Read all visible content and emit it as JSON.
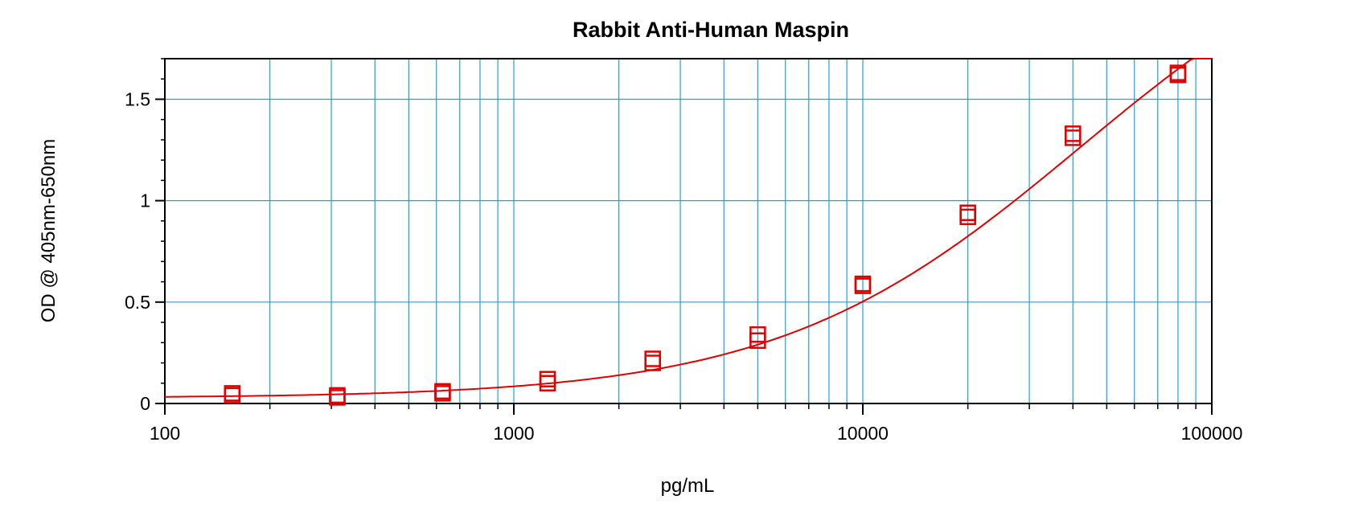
{
  "chart_data": {
    "type": "scatter",
    "title": "Rabbit Anti-Human Maspin",
    "xlabel": "pg/mL",
    "ylabel": "OD @ 405nm-650nm",
    "x_scale": "log",
    "xlim": [
      100,
      100000
    ],
    "ylim": [
      0,
      1.7
    ],
    "x_ticks": [
      "100",
      "1000",
      "10000",
      "100000"
    ],
    "y_ticks": [
      "0",
      "0.5",
      "1",
      "1.5"
    ],
    "grid": true,
    "legend": "none",
    "series": [
      {
        "marker": "square",
        "color": "#e00000",
        "points": [
          {
            "x": 156,
            "y": 0.05
          },
          {
            "x": 156,
            "y": 0.04
          },
          {
            "x": 312,
            "y": 0.03
          },
          {
            "x": 312,
            "y": 0.04
          },
          {
            "x": 625,
            "y": 0.05
          },
          {
            "x": 625,
            "y": 0.06
          },
          {
            "x": 1250,
            "y": 0.1
          },
          {
            "x": 1250,
            "y": 0.12
          },
          {
            "x": 2500,
            "y": 0.2
          },
          {
            "x": 2500,
            "y": 0.22
          },
          {
            "x": 5000,
            "y": 0.31
          },
          {
            "x": 5000,
            "y": 0.34
          },
          {
            "x": 10000,
            "y": 0.59
          },
          {
            "x": 10000,
            "y": 0.58
          },
          {
            "x": 20000,
            "y": 0.92
          },
          {
            "x": 20000,
            "y": 0.94
          },
          {
            "x": 40000,
            "y": 1.31
          },
          {
            "x": 40000,
            "y": 1.33
          },
          {
            "x": 80000,
            "y": 1.62
          },
          {
            "x": 80000,
            "y": 1.63
          }
        ]
      }
    ],
    "fit_curve": {
      "type": "4PL",
      "color": "#e00000",
      "params": {
        "bottom": 0.027,
        "top": 2.5,
        "ec50": 42000,
        "hill": 1.0
      }
    },
    "colors": {
      "grid": "#1aa3e0",
      "axis": "#000000",
      "series": "#e00000"
    }
  }
}
